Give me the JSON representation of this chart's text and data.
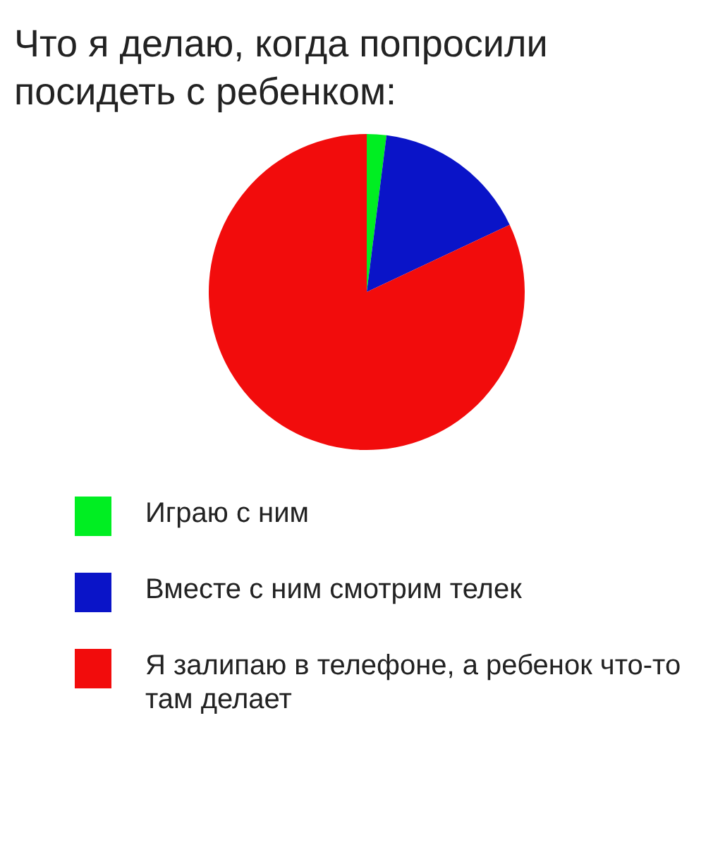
{
  "chart_data": {
    "type": "pie",
    "title": "Что я делаю, когда попросили посидеть с ребенком:",
    "categories": [
      "Играю с ним",
      "Вместе с ним смотрим телек",
      "Я залипаю в телефоне, а ребенок что-то там делает"
    ],
    "values": [
      2,
      16,
      82
    ],
    "colors": [
      "#00ee22",
      "#0a14c8",
      "#f20c0c"
    ],
    "legend": "bottom"
  }
}
